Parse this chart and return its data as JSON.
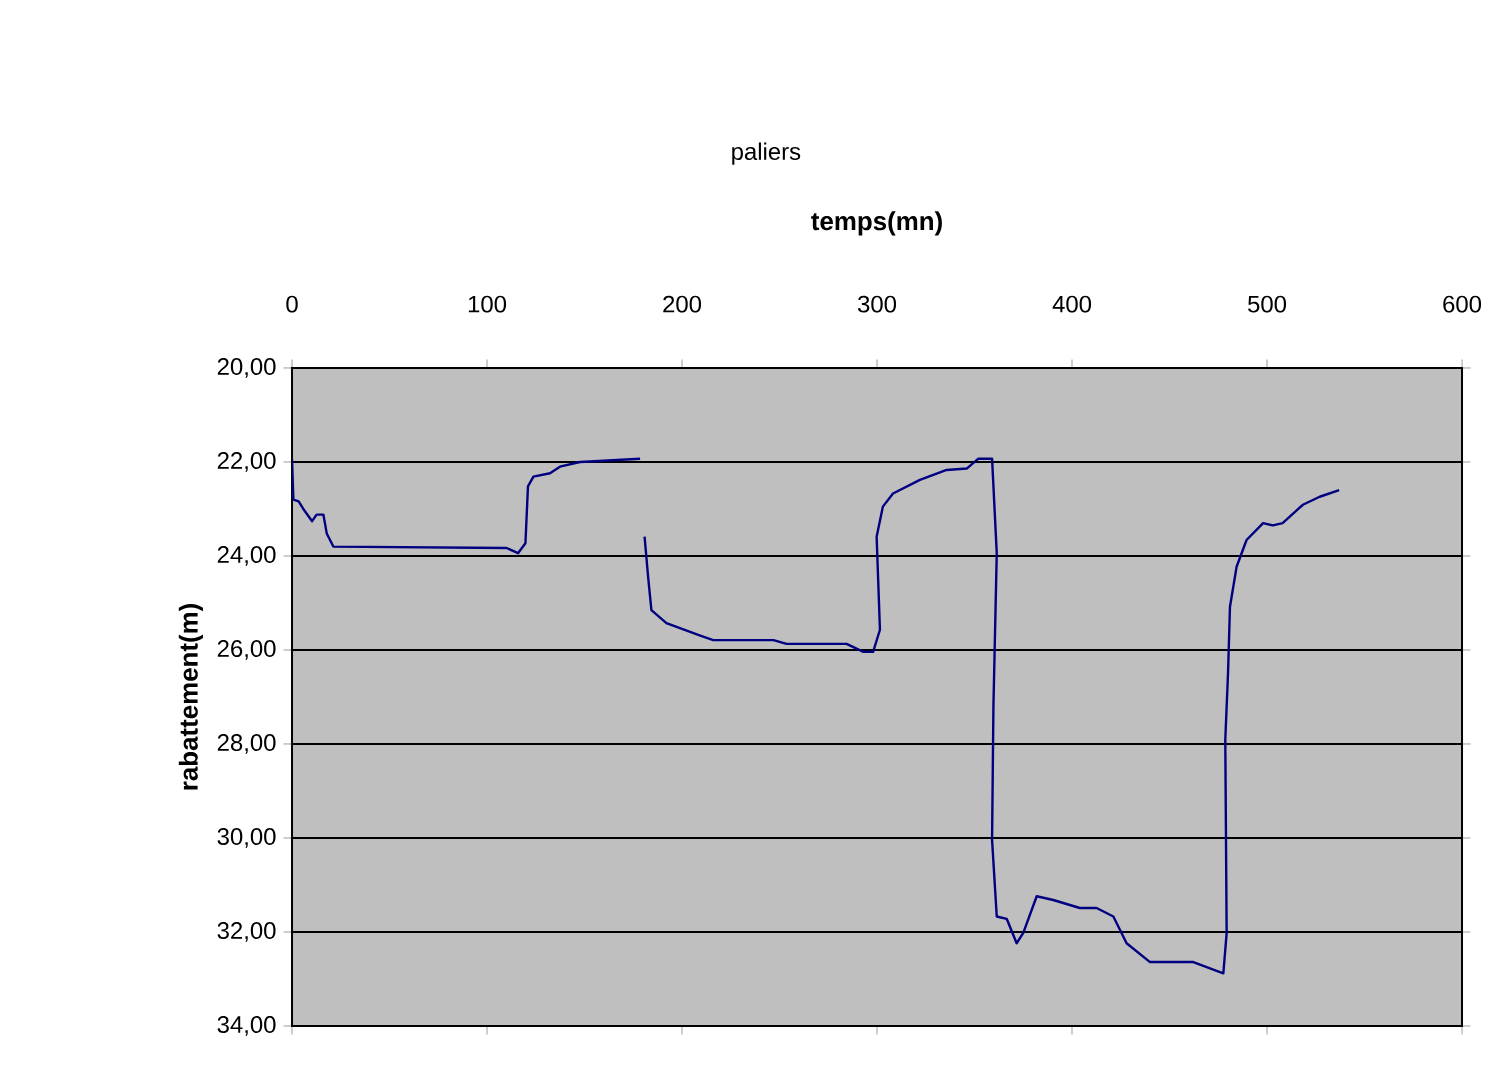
{
  "chart_data": {
    "type": "line",
    "title": "paliers",
    "xlabel": "**temps(mn)**",
    "ylabel": "**rabattement(m)**",
    "x": [
      0,
      0.7,
      3.4,
      5.8,
      10.3,
      12.6,
      16.1,
      17.8,
      21.2,
      110,
      115.9,
      119.7,
      121,
      123.8,
      132.3,
      137.4,
      147.7,
      178.5,
      179.6,
      180.8,
      182.6,
      184.3,
      192,
      209,
      216,
      246.9,
      253.6,
      284.4,
      293,
      298,
      301.5,
      299.8,
      303,
      308.2,
      322,
      335.7,
      346,
      352,
      359,
      361.4,
      359.7,
      359,
      361.4,
      366.5,
      371.6,
      375,
      381.9,
      390.4,
      404,
      412.6,
      421.2,
      428,
      440,
      462.2,
      477.6,
      479.3,
      478.6,
      480,
      481,
      484.4,
      489.5,
      498,
      503,
      508,
      518.4,
      527,
      537
    ],
    "series": [
      {
        "color": "#000080",
        "values": [
          21.93,
          22.8,
          22.84,
          23.0,
          23.26,
          23.12,
          23.12,
          23.52,
          23.8,
          23.83,
          23.94,
          23.73,
          22.52,
          22.31,
          22.24,
          22.1,
          22.0,
          21.93,
          null,
          23.59,
          24.44,
          25.15,
          25.43,
          25.69,
          25.79,
          25.79,
          25.87,
          25.87,
          26.04,
          26.04,
          25.57,
          23.59,
          22.95,
          22.67,
          22.38,
          22.17,
          22.14,
          21.93,
          21.93,
          23.94,
          27.2,
          30.04,
          31.67,
          31.72,
          32.24,
          32.02,
          31.24,
          31.32,
          31.49,
          31.49,
          31.67,
          32.24,
          32.64,
          32.64,
          32.88,
          32.02,
          27.91,
          26.5,
          25.08,
          24.23,
          23.66,
          23.3,
          23.35,
          23.3,
          22.91,
          22.74,
          22.6
        ]
      }
    ],
    "xlim": [
      0,
      600
    ],
    "xticks": [
      0,
      100,
      200,
      300,
      400,
      500,
      600
    ],
    "ylim": [
      34,
      20
    ],
    "yticks": [
      {
        "value": 20,
        "label": "20,00"
      },
      {
        "value": 22,
        "label": "22,00"
      },
      {
        "value": 24,
        "label": "24,00"
      },
      {
        "value": 26,
        "label": "26,00"
      },
      {
        "value": 28,
        "label": "28,00"
      },
      {
        "value": 30,
        "label": "30,00"
      },
      {
        "value": 32,
        "label": "32,00"
      },
      {
        "value": 34,
        "label": "34,00"
      }
    ],
    "grid": "y",
    "marker": "none",
    "line_style": "solid"
  }
}
